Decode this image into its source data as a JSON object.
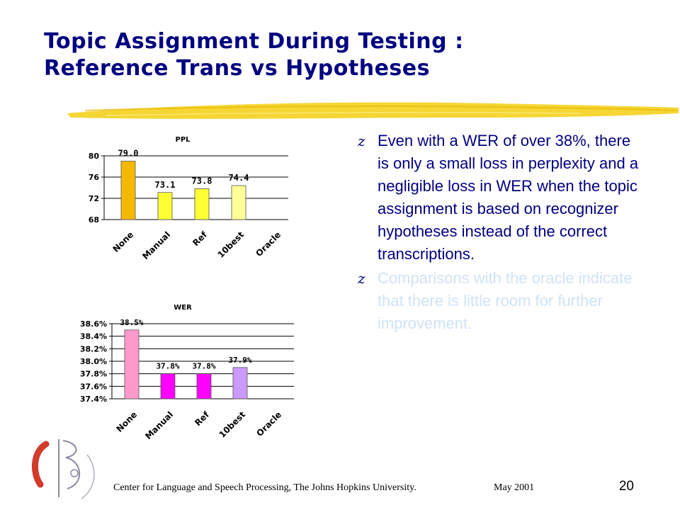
{
  "slide": {
    "title_line1": "Topic Assignment During Testing :",
    "title_line2": "Reference Trans vs Hypotheses",
    "bullets": [
      {
        "marker": "z",
        "text": "Even with a WER of over 38%, there is only a small loss in perplexity and a negligible loss in WER when the topic assignment is based on recognizer hypotheses instead of the correct transcriptions."
      },
      {
        "marker": "z",
        "text": "Comparisons with the oracle indicate that there is little room for further improvement."
      }
    ],
    "footer_org": "Center for Language and Speech Processing, The Johns Hopkins University.",
    "footer_date": "May 2001",
    "page_number": "20",
    "colors": {
      "title": "#000080",
      "bullet_primary": "#000080",
      "bullet_faded": "#cfe3f7",
      "underline": "#f2cf1c"
    }
  },
  "chart_data": [
    {
      "type": "bar",
      "title": "PPL",
      "categories": [
        "None",
        "Manual",
        "Ref",
        "10best",
        "Oracle"
      ],
      "values": [
        79.0,
        73.1,
        73.8,
        74.4,
        null
      ],
      "value_labels": [
        "79.0",
        "73.1",
        "73.8",
        "74.4",
        ""
      ],
      "ylim": [
        68,
        80
      ],
      "yticks": [
        "68",
        "72",
        "76",
        "80"
      ],
      "ytick_values": [
        68,
        72,
        76,
        80
      ],
      "grid": true,
      "bar_colors": [
        "#f5b800",
        "#ffff33",
        "#ffff33",
        "#ffff99",
        "#ffffff"
      ]
    },
    {
      "type": "bar",
      "title": "WER",
      "categories": [
        "None",
        "Manual",
        "Ref",
        "10best",
        "Oracle"
      ],
      "values": [
        38.5,
        37.8,
        37.8,
        37.9,
        null
      ],
      "value_labels": [
        "38.5%",
        "37.8%",
        "37.8%",
        "37.9%",
        ""
      ],
      "ylim": [
        37.4,
        38.6
      ],
      "yticks": [
        "37.4%",
        "37.6%",
        "37.8%",
        "38.0%",
        "38.2%",
        "38.4%",
        "38.6%"
      ],
      "ytick_values": [
        37.4,
        37.6,
        37.8,
        38.0,
        38.2,
        38.4,
        38.6
      ],
      "grid": true,
      "bar_colors": [
        "#ff99cc",
        "#ff00ff",
        "#ff00ff",
        "#cc99ff",
        "#ffffff"
      ]
    }
  ]
}
